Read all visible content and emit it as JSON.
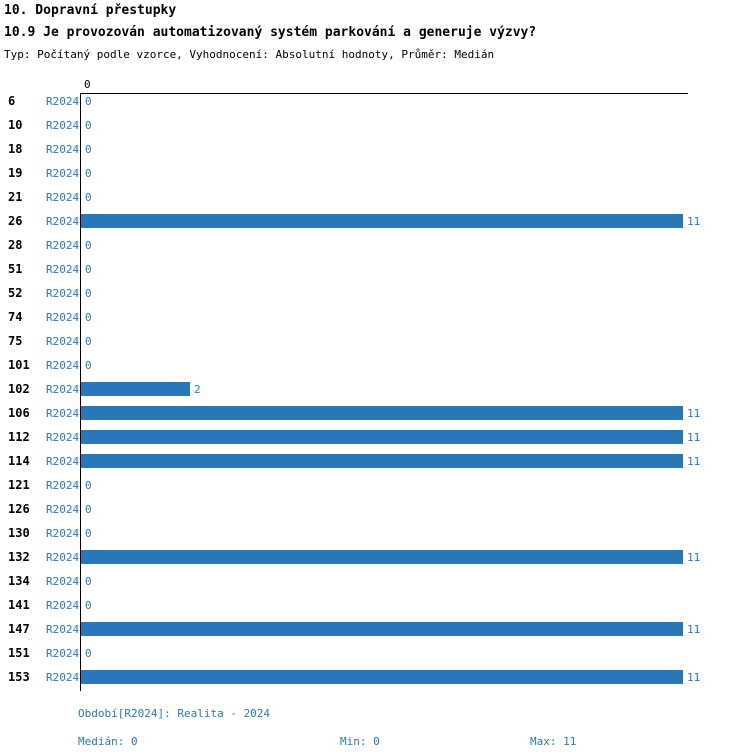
{
  "header": {
    "title": "10. Dopravní přestupky",
    "subtitle": "10.9 Je provozován automatizovaný systém parkování a generuje výzvy?",
    "meta": "Typ: Počítaný podle vzorce, Vyhodnocení: Absolutní hodnoty, Průměr: Medián"
  },
  "chart_data": {
    "type": "bar",
    "orientation": "horizontal",
    "title": "10.9 Je provozován automatizovaný systém parkování a generuje výzvy?",
    "series_label": "R2024",
    "categories": [
      "6",
      "10",
      "18",
      "19",
      "21",
      "26",
      "28",
      "51",
      "52",
      "74",
      "75",
      "101",
      "102",
      "106",
      "112",
      "114",
      "121",
      "126",
      "130",
      "132",
      "134",
      "141",
      "147",
      "151",
      "153"
    ],
    "values": [
      0,
      0,
      0,
      0,
      0,
      11,
      0,
      0,
      0,
      0,
      0,
      0,
      2,
      11,
      11,
      11,
      0,
      0,
      0,
      11,
      0,
      0,
      11,
      0,
      11
    ],
    "xlim": [
      0,
      11
    ],
    "axis_tick_zero": "0",
    "grid": "off",
    "bar_color": "#2878b9"
  },
  "footer": {
    "period": "Období[R2024]: Realita - 2024",
    "median": "Medián: 0",
    "min": "Min: 0",
    "max": "Max: 11"
  }
}
